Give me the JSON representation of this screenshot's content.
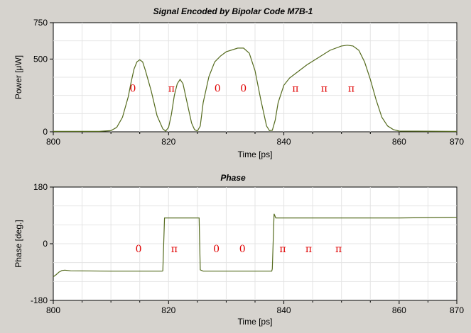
{
  "chart_data": [
    {
      "type": "line",
      "title": "Signal Encoded by Bipolar Code M7B-1",
      "xlabel": "Time [ps]",
      "ylabel": "Power [μW]",
      "xlim": [
        800,
        870
      ],
      "ylim": [
        0,
        750
      ],
      "xticks": [
        800,
        820,
        840,
        860,
        870
      ],
      "yticks": [
        0,
        500,
        750
      ],
      "grid": true,
      "line_color": "#556b1e",
      "series": [
        {
          "x": [
            800,
            808,
            810,
            811,
            812,
            813,
            813.5,
            814,
            814.5,
            815,
            815.5,
            816,
            817,
            818,
            819,
            819.5,
            820,
            820.5,
            821,
            821.5,
            822,
            822.5,
            823,
            824,
            824.5,
            825,
            825.5,
            826,
            827,
            828,
            829,
            830,
            832,
            833,
            834,
            835,
            836,
            837,
            837.5,
            838,
            838.5,
            839,
            840,
            841,
            842,
            844,
            846,
            848,
            850,
            851,
            852,
            853,
            854,
            855,
            856,
            857,
            858,
            859,
            860,
            870
          ],
          "y": [
            3,
            3,
            8,
            30,
            100,
            240,
            340,
            430,
            480,
            495,
            480,
            420,
            280,
            110,
            20,
            5,
            30,
            120,
            250,
            330,
            360,
            330,
            240,
            60,
            15,
            5,
            40,
            200,
            380,
            480,
            520,
            550,
            575,
            575,
            540,
            420,
            220,
            40,
            8,
            10,
            80,
            200,
            320,
            370,
            400,
            460,
            510,
            560,
            590,
            595,
            590,
            560,
            480,
            360,
            220,
            100,
            40,
            15,
            5,
            3
          ]
        }
      ],
      "annotations": [
        {
          "x": 813.8,
          "y": 300,
          "text": "0"
        },
        {
          "x": 820.5,
          "y": 300,
          "text": "π"
        },
        {
          "x": 828.5,
          "y": 300,
          "text": "0"
        },
        {
          "x": 833,
          "y": 300,
          "text": "0"
        },
        {
          "x": 842,
          "y": 300,
          "text": "π"
        },
        {
          "x": 847,
          "y": 300,
          "text": "π"
        },
        {
          "x": 851.7,
          "y": 300,
          "text": "π"
        }
      ]
    },
    {
      "type": "line",
      "title": "Phase",
      "xlabel": "Time [ps]",
      "ylabel": "Phase [deg.]",
      "xlim": [
        800,
        870
      ],
      "ylim": [
        -180,
        180
      ],
      "xticks": [
        800,
        820,
        840,
        860,
        870
      ],
      "yticks": [
        -180,
        0,
        180
      ],
      "grid": true,
      "line_color": "#556b1e",
      "series": [
        {
          "x": [
            800,
            800.5,
            801,
            801.5,
            802,
            803,
            810,
            818.9,
            819,
            819.3,
            825.3,
            825.5,
            826,
            837.9,
            838,
            838.3,
            838.6,
            840,
            850,
            855,
            860,
            865,
            870
          ],
          "y": [
            -105,
            -98,
            -90,
            -85,
            -84,
            -86,
            -87,
            -87,
            -86,
            82,
            82,
            -83,
            -87,
            -87,
            -80,
            95,
            82,
            82,
            82,
            82,
            82,
            83,
            84
          ]
        }
      ],
      "annotations": [
        {
          "x": 814.8,
          "y": -16,
          "text": "0"
        },
        {
          "x": 821,
          "y": -16,
          "text": "π"
        },
        {
          "x": 828.3,
          "y": -16,
          "text": "0"
        },
        {
          "x": 832.8,
          "y": -16,
          "text": "0"
        },
        {
          "x": 839.8,
          "y": -16,
          "text": "π"
        },
        {
          "x": 844.3,
          "y": -16,
          "text": "π"
        },
        {
          "x": 849.5,
          "y": -16,
          "text": "π"
        }
      ]
    }
  ]
}
